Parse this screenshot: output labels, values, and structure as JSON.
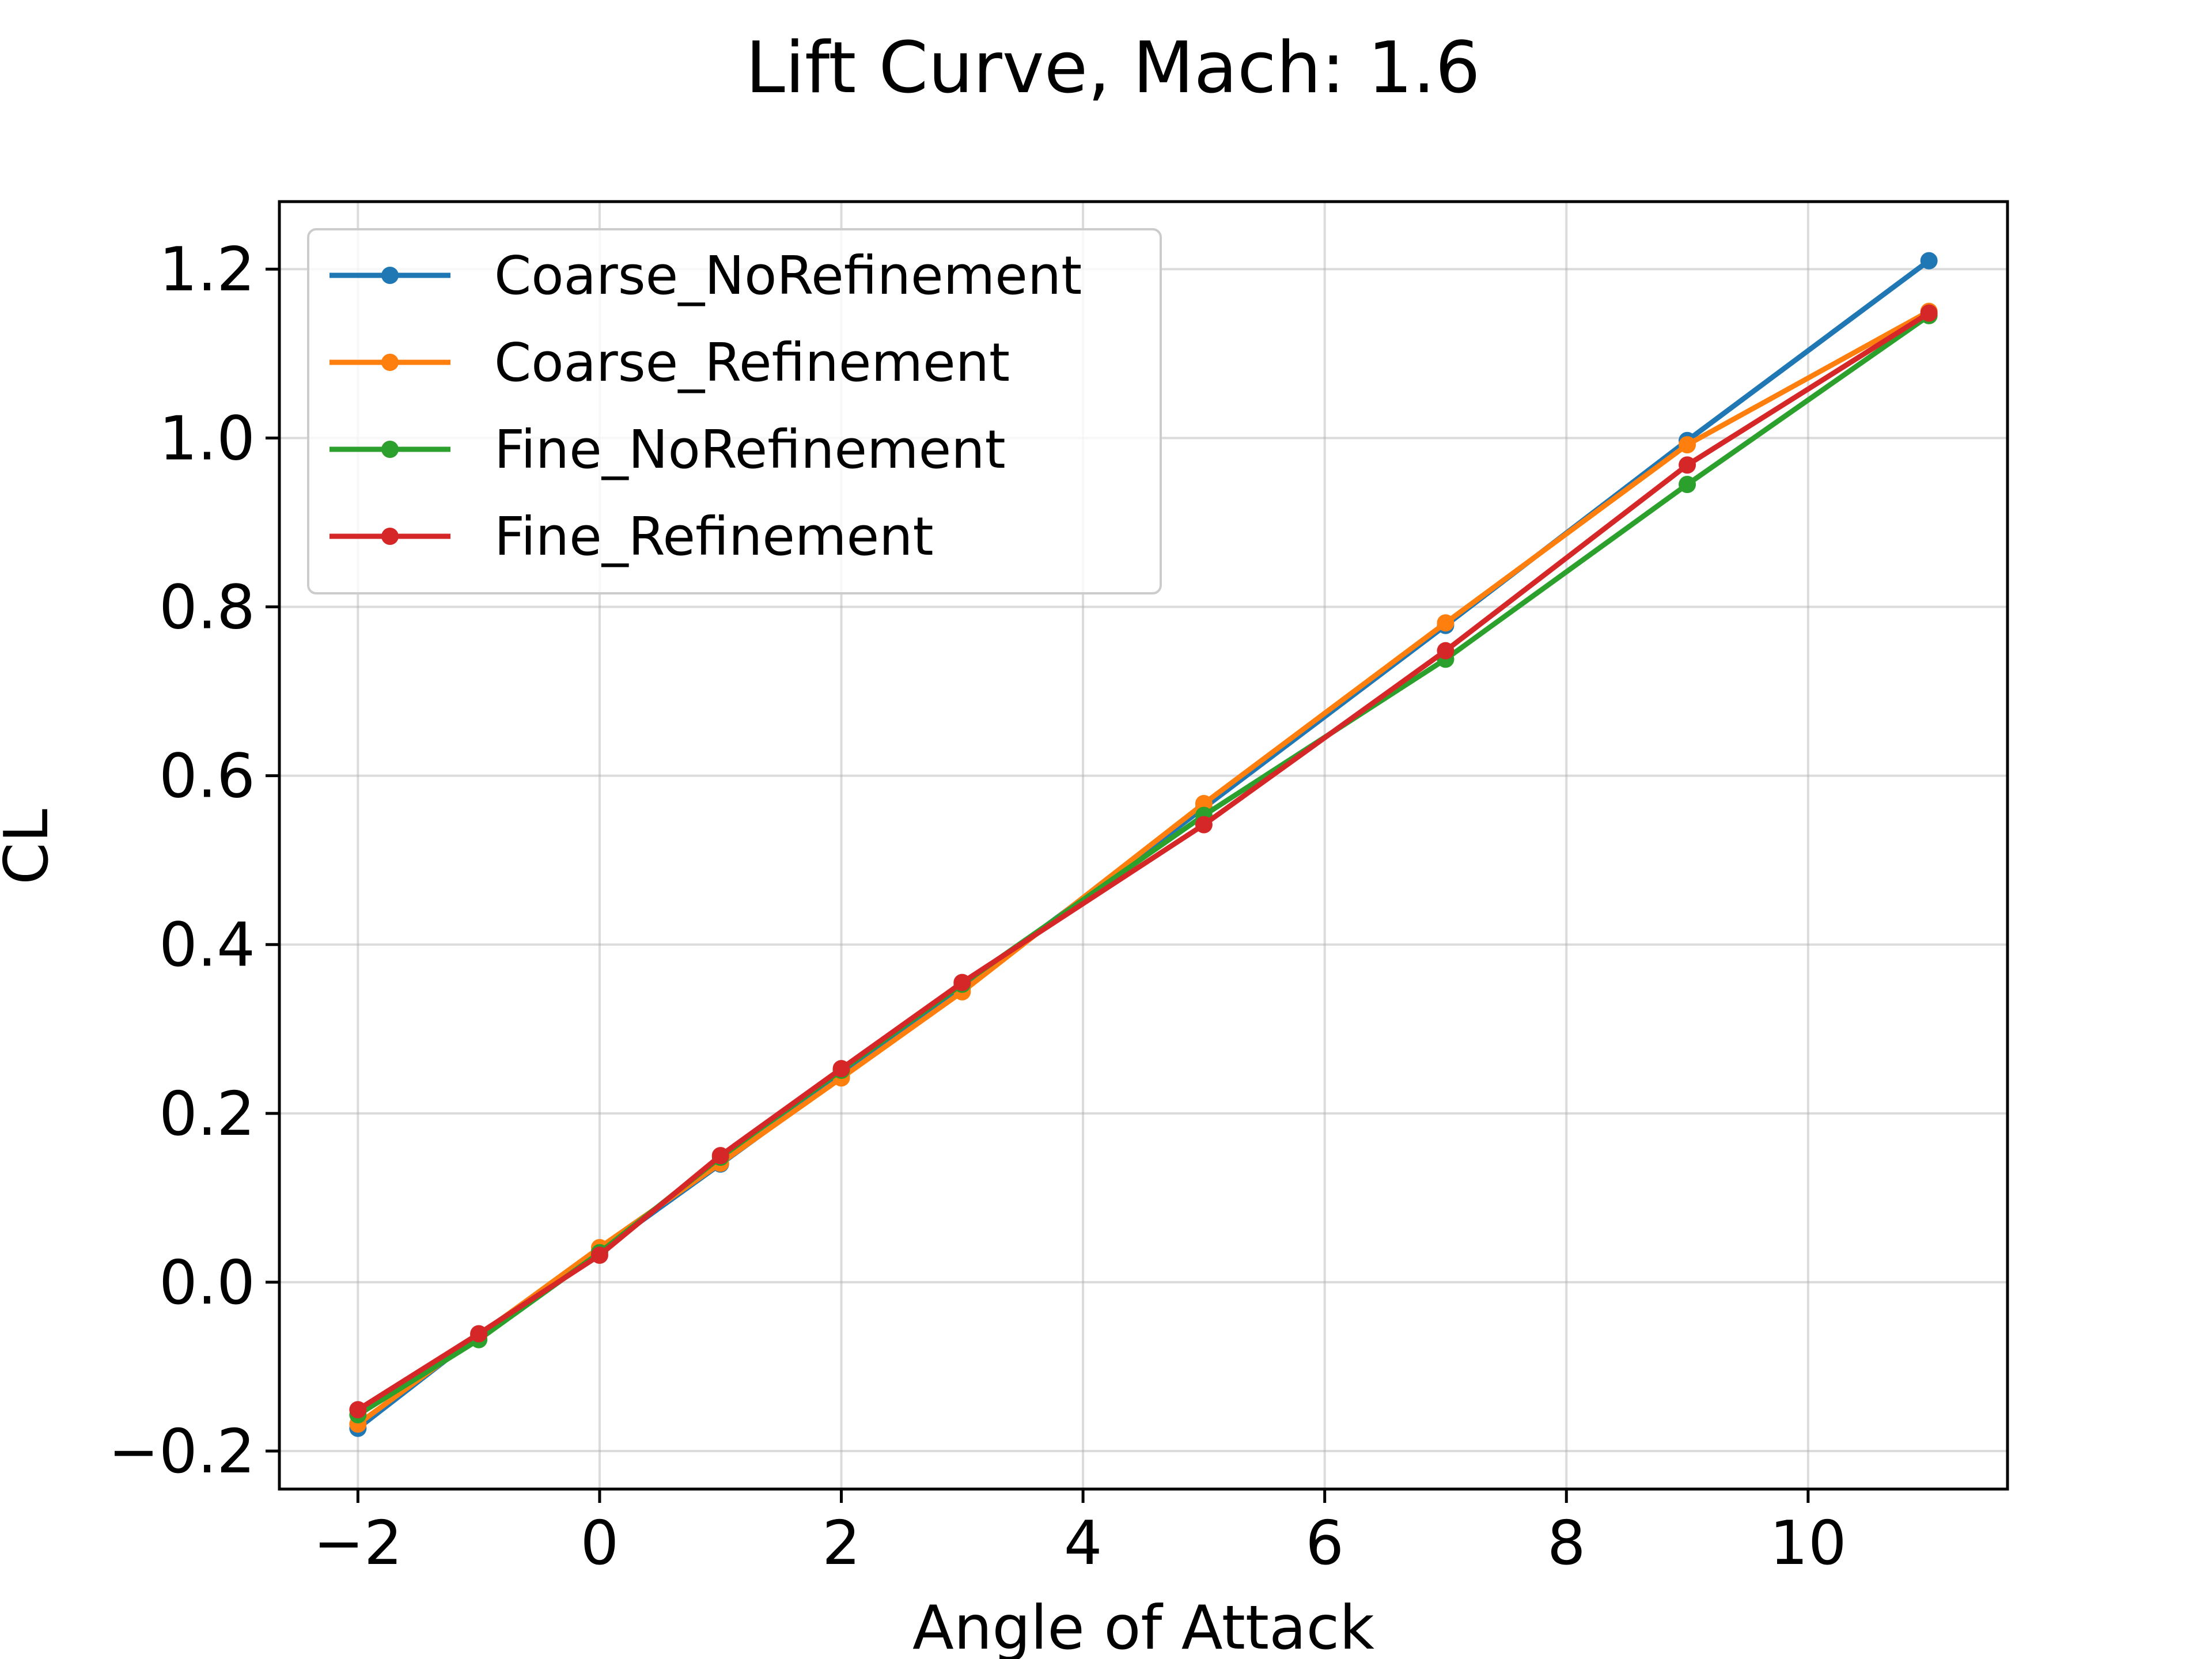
{
  "chart_data": {
    "type": "line",
    "title": "Lift Curve, Mach: 1.6",
    "xlabel": "Angle of Attack",
    "ylabel": "CL",
    "xlim": [
      -2.65,
      11.65
    ],
    "ylim": [
      -0.245,
      1.28
    ],
    "x_ticks": [
      -2,
      0,
      2,
      4,
      6,
      8,
      10
    ],
    "x_tick_labels": [
      "−2",
      "0",
      "2",
      "4",
      "6",
      "8",
      "10"
    ],
    "y_ticks": [
      -0.2,
      0.0,
      0.2,
      0.4,
      0.6,
      0.8,
      1.0,
      1.2
    ],
    "y_tick_labels": [
      "−0.2",
      "0.0",
      "0.2",
      "0.4",
      "0.6",
      "0.8",
      "1.0",
      "1.2"
    ],
    "grid": true,
    "legend_position": "upper-left",
    "series": [
      {
        "name": "Coarse_NoRefinement",
        "color": "#1f77b4",
        "x": [
          -2,
          -1,
          0,
          1,
          2,
          3,
          5,
          7,
          9,
          11
        ],
        "y": [
          -0.173,
          -0.062,
          0.037,
          0.14,
          0.244,
          0.348,
          0.562,
          0.778,
          0.997,
          1.21
        ]
      },
      {
        "name": "Coarse_Refinement",
        "color": "#ff7f0e",
        "x": [
          -2,
          -1,
          0,
          1,
          2,
          3,
          5,
          7,
          9,
          11
        ],
        "y": [
          -0.168,
          -0.063,
          0.041,
          0.141,
          0.242,
          0.344,
          0.567,
          0.781,
          0.992,
          1.15
        ]
      },
      {
        "name": "Fine_NoRefinement",
        "color": "#2ca02c",
        "x": [
          -2,
          -1,
          0,
          1,
          2,
          3,
          5,
          7,
          9,
          11
        ],
        "y": [
          -0.157,
          -0.068,
          0.035,
          0.148,
          0.251,
          0.353,
          0.553,
          0.738,
          0.945,
          1.145
        ]
      },
      {
        "name": "Fine_Refinement",
        "color": "#d62728",
        "x": [
          -2,
          -1,
          0,
          1,
          2,
          3,
          5,
          7,
          9,
          11
        ],
        "y": [
          -0.151,
          -0.061,
          0.032,
          0.15,
          0.253,
          0.355,
          0.542,
          0.748,
          0.968,
          1.148
        ]
      }
    ]
  }
}
